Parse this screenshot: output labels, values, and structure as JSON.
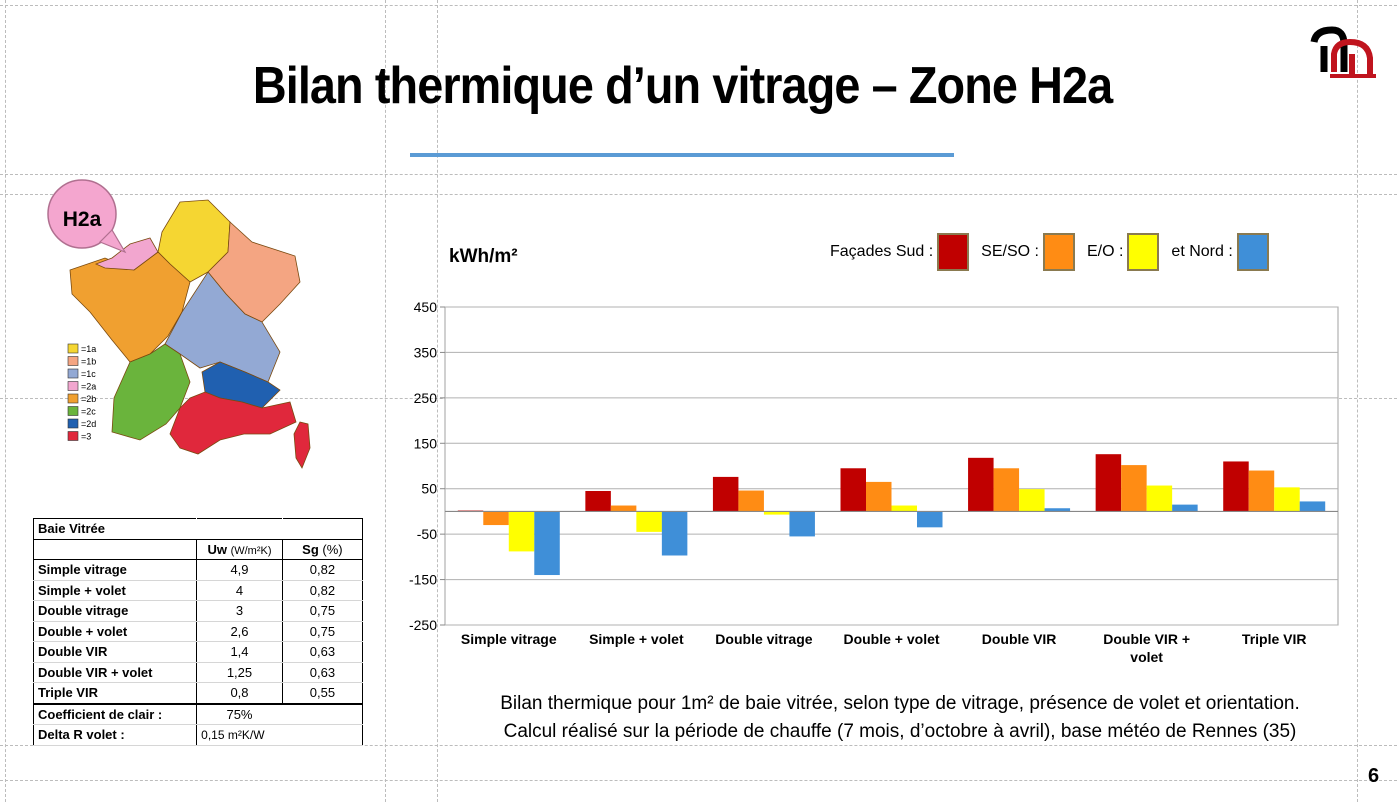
{
  "slide": {
    "title": "Bilan thermique d’un vitrage – Zone H2a",
    "page_number": "6",
    "caption_line1": "Bilan thermique pour 1m² de baie vitrée, selon type de vitrage, présence de volet et orientation.",
    "caption_line2": "Calcul réalisé sur la période de chauffe (7 mois, d’octobre à avril), base météo de Rennes (35)"
  },
  "map": {
    "zone_label": "H2a",
    "legend": [
      {
        "label": "=1a",
        "color": "#f5d632"
      },
      {
        "label": "=1b",
        "color": "#f4a582"
      },
      {
        "label": "=1c",
        "color": "#93a9d4"
      },
      {
        "label": "=2a",
        "color": "#f2a6cf"
      },
      {
        "label": "=2b",
        "color": "#f0a030"
      },
      {
        "label": "=2c",
        "color": "#6ab43c"
      },
      {
        "label": "=2d",
        "color": "#2060b0"
      },
      {
        "label": "=3",
        "color": "#e0283c"
      }
    ]
  },
  "table": {
    "title": "Baie Vitrée",
    "col_uw": "Uw",
    "col_uw_unit": "(W/m²K)",
    "col_sg": "Sg",
    "col_sg_unit": "(%)",
    "rows": [
      {
        "label": "Simple vitrage",
        "uw": "4,9",
        "sg": "0,82"
      },
      {
        "label": "Simple + volet",
        "uw": "4",
        "sg": "0,82"
      },
      {
        "label": "Double vitrage",
        "uw": "3",
        "sg": "0,75"
      },
      {
        "label": "Double + volet",
        "uw": "2,6",
        "sg": "0,75"
      },
      {
        "label": "Double VIR",
        "uw": "1,4",
        "sg": "0,63"
      },
      {
        "label": "Double VIR + volet",
        "uw": "1,25",
        "sg": "0,63"
      },
      {
        "label": "Triple VIR",
        "uw": "0,8",
        "sg": "0,55"
      }
    ],
    "coef_label": "Coefficient de clair :",
    "coef_value": "75%",
    "delta_label": "Delta R volet :",
    "delta_value": "0,15 m²K/W"
  },
  "chart_data": {
    "type": "bar",
    "ylabel": "kWh/m²",
    "ylim": [
      -250,
      450
    ],
    "yticks": [
      450,
      350,
      250,
      150,
      50,
      -50,
      -150,
      -250
    ],
    "grid": true,
    "legend_position": "top-right",
    "categories": [
      "Simple vitrage",
      "Simple + volet",
      "Double vitrage",
      "Double + volet",
      "Double VIR",
      "Double VIR + volet",
      "Triple VIR"
    ],
    "series": [
      {
        "name": "Façades Sud :",
        "color": "#c00000",
        "values": [
          2,
          45,
          76,
          95,
          118,
          126,
          110
        ]
      },
      {
        "name": "SE/SO :",
        "color": "#ff8c14",
        "values": [
          -30,
          13,
          46,
          65,
          95,
          102,
          90
        ]
      },
      {
        "name": "E/O :",
        "color": "#ffff00",
        "values": [
          -88,
          -45,
          -7,
          13,
          49,
          57,
          53
        ]
      },
      {
        "name": "et Nord :",
        "color": "#3f8fd8",
        "values": [
          -140,
          -97,
          -55,
          -35,
          7,
          15,
          22
        ]
      }
    ]
  }
}
